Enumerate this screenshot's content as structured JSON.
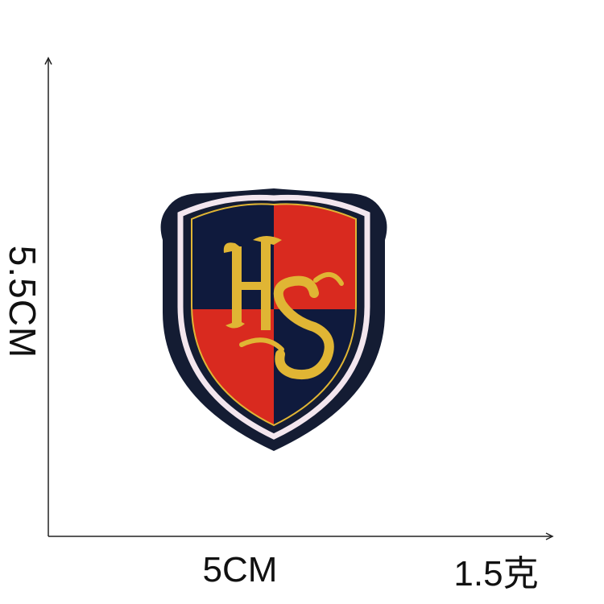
{
  "dimensions": {
    "height_label": "5.5CM",
    "width_label": "5CM",
    "weight_label": "1.5克"
  },
  "patch": {
    "monogram": "HS",
    "colors": {
      "border": "#141c33",
      "outline": "#f3e6ee",
      "red": "#d92a1f",
      "navy": "#0f1a3d",
      "gold": "#e0b534"
    }
  }
}
